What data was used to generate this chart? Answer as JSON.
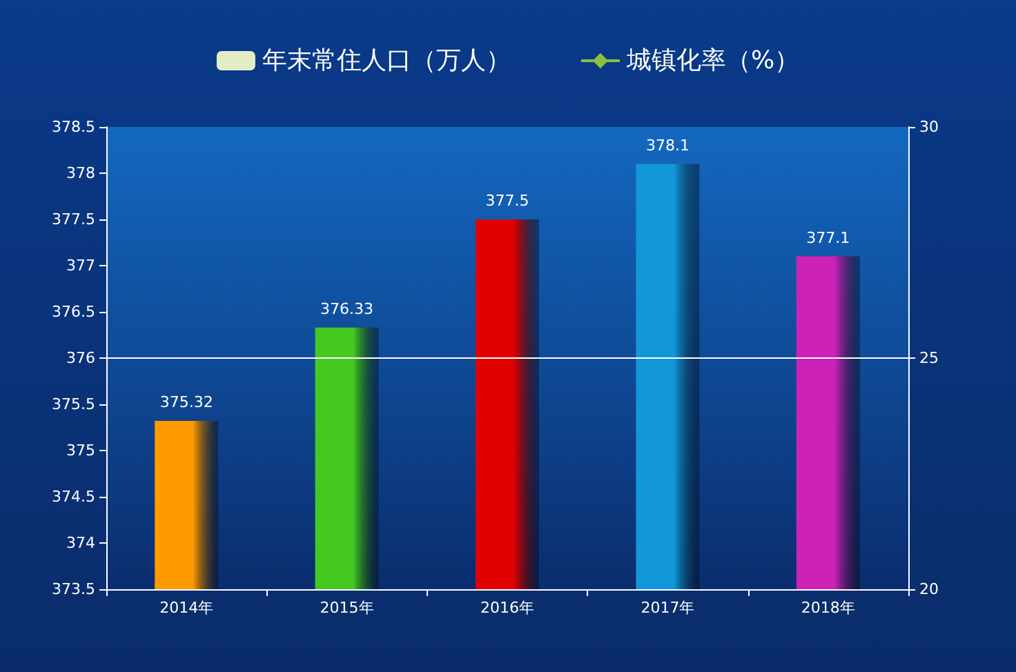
{
  "chart_data": {
    "type": "bar",
    "categories": [
      "2014年",
      "2015年",
      "2016年",
      "2017年",
      "2018年"
    ],
    "series": [
      {
        "name": "年末常住人口（万人）",
        "color": "#e2eec6",
        "colors": [
          "#ff9a00",
          "#44c922",
          "#e00000",
          "#1297d8",
          "#cc22b8"
        ],
        "values": [
          375.32,
          376.33,
          377.5,
          378.1,
          377.1
        ]
      },
      {
        "type": "line",
        "name": "城镇化率（%）",
        "color": "#8fbf3a",
        "marker": "diamond",
        "values": [
          null,
          null,
          null,
          null,
          null
        ]
      }
    ],
    "ylim": [
      373.5,
      378.5
    ],
    "yticks": [
      373.5,
      374,
      374.5,
      375,
      375.5,
      376,
      376.5,
      377,
      377.5,
      378,
      378.5
    ],
    "y2lim": [
      20,
      30
    ],
    "y2ticks": [
      20,
      25,
      30
    ],
    "ref_lines": [
      {
        "axis": "y2",
        "value": 25,
        "color": "#ffffff"
      }
    ],
    "data_labels": true,
    "legend": "top",
    "grid": false
  }
}
